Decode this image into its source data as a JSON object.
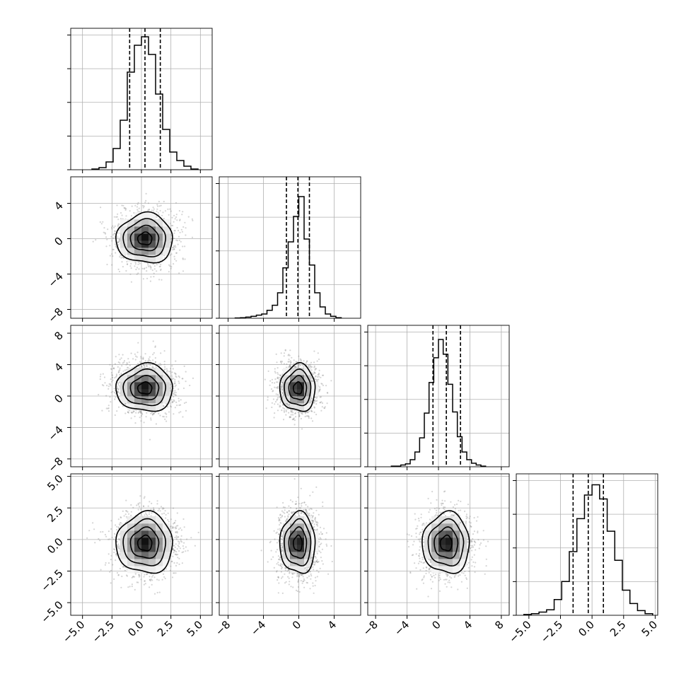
{
  "chart_data": {
    "type": "corner",
    "title": "",
    "parameter_labels": [
      "",
      "",
      "",
      ""
    ],
    "parameters": [
      {
        "range": [
          -6.0,
          6.0
        ],
        "ticks": [
          -5.0,
          -2.5,
          0.0,
          2.5,
          5.0
        ],
        "tick_labels": [
          "−5.0",
          "−2.5",
          "0.0",
          "2.5",
          "5.0"
        ],
        "quantiles": [
          -1.0,
          0.3,
          1.6
        ],
        "histogram": {
          "edges": [
            -4.2,
            -3.6,
            -3.0,
            -2.4,
            -1.8,
            -1.2,
            -0.6,
            0.0,
            0.6,
            1.2,
            1.8,
            2.4,
            3.0,
            3.6,
            4.2,
            4.8
          ],
          "counts": [
            2,
            6,
            22,
            60,
            140,
            276,
            352,
            376,
            326,
            214,
            114,
            50,
            26,
            10,
            2
          ],
          "ymax": 400
        }
      },
      {
        "range": [
          -9.0,
          7.0
        ],
        "ticks": [
          -8,
          -4,
          0,
          4
        ],
        "tick_labels": [
          "−8",
          "−4",
          "0",
          "4"
        ],
        "quantiles": [
          -1.4,
          -0.1,
          1.2
        ],
        "histogram": {
          "edges": [
            -7.2,
            -6.6,
            -6.0,
            -5.4,
            -4.8,
            -4.2,
            -3.6,
            -3.0,
            -2.4,
            -1.8,
            -1.2,
            -0.6,
            0.0,
            0.6,
            1.2,
            1.8,
            2.4,
            3.0,
            3.6,
            4.2,
            4.8
          ],
          "counts": [
            2,
            4,
            8,
            14,
            22,
            30,
            56,
            92,
            180,
            356,
            540,
            720,
            860,
            560,
            376,
            180,
            80,
            30,
            14,
            4
          ],
          "ymax": 1000
        }
      },
      {
        "range": [
          -9.0,
          9.0
        ],
        "ticks": [
          -8,
          -4,
          0,
          4,
          8
        ],
        "tick_labels": [
          "−8",
          "−4",
          "0",
          "4",
          "8"
        ],
        "quantiles": [
          -0.7,
          1.0,
          2.8
        ],
        "histogram": {
          "edges": [
            -6.0,
            -5.4,
            -4.8,
            -4.2,
            -3.6,
            -3.0,
            -2.4,
            -1.8,
            -1.2,
            -0.6,
            0.0,
            0.6,
            1.2,
            1.8,
            2.4,
            3.0,
            3.6,
            4.2,
            4.8,
            5.4,
            6.0
          ],
          "counts": [
            2,
            2,
            6,
            10,
            24,
            50,
            98,
            182,
            286,
            370,
            432,
            382,
            280,
            186,
            102,
            50,
            24,
            12,
            6,
            2
          ],
          "ymax": 480
        }
      },
      {
        "range": [
          -6.0,
          5.2
        ],
        "ticks": [
          -5.0,
          -2.5,
          0.0,
          2.5,
          5.0
        ],
        "tick_labels": [
          "−5.0",
          "−2.5",
          "0.0",
          "2.5",
          "5.0"
        ],
        "quantiles": [
          -1.5,
          -0.3,
          0.9
        ],
        "histogram": {
          "edges": [
            -5.4,
            -4.8,
            -4.2,
            -3.6,
            -3.0,
            -2.4,
            -1.8,
            -1.2,
            -0.6,
            0.0,
            0.6,
            1.2,
            1.8,
            2.4,
            3.0,
            3.6,
            4.2,
            4.8
          ],
          "counts": [
            2,
            4,
            8,
            14,
            40,
            86,
            162,
            246,
            306,
            332,
            296,
            214,
            140,
            64,
            30,
            12,
            4
          ],
          "ymax": 360
        }
      }
    ],
    "pairs": [
      {
        "x": 0,
        "y": 1,
        "mean": [
          0.3,
          0.0
        ],
        "sd": [
          1.2,
          1.4
        ]
      },
      {
        "x": 0,
        "y": 2,
        "mean": [
          0.3,
          1.0
        ],
        "sd": [
          1.2,
          1.5
        ]
      },
      {
        "x": 1,
        "y": 2,
        "mean": [
          -0.1,
          1.0
        ],
        "sd": [
          1.0,
          1.5
        ]
      },
      {
        "x": 0,
        "y": 3,
        "mean": [
          0.3,
          -0.3
        ],
        "sd": [
          1.2,
          1.2
        ]
      },
      {
        "x": 1,
        "y": 3,
        "mean": [
          -0.1,
          -0.3
        ],
        "sd": [
          1.0,
          1.2
        ]
      },
      {
        "x": 2,
        "y": 3,
        "mean": [
          1.0,
          -0.3
        ],
        "sd": [
          1.5,
          1.2
        ]
      }
    ],
    "contour_levels_sigma": [
      0.5,
      1.0,
      1.5,
      2.0
    ],
    "grid": true
  }
}
